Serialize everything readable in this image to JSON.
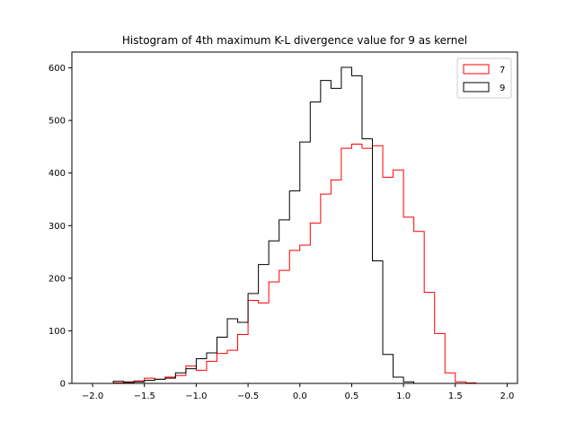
{
  "chart_data": {
    "type": "histogram",
    "title": "Histogram of 4th maximum K-L divergence value for 9 as kernel",
    "xlabel": "",
    "ylabel": "",
    "xlim": [
      -2.2,
      2.1
    ],
    "ylim": [
      0,
      630
    ],
    "x_ticks": [
      -2.0,
      -1.5,
      -1.0,
      -0.5,
      0.0,
      0.5,
      1.0,
      1.5,
      2.0
    ],
    "x_tick_labels": [
      "−2.0",
      "−1.5",
      "−1.0",
      "−0.5",
      "0.0",
      "0.5",
      "1.0",
      "1.5",
      "2.0"
    ],
    "y_ticks": [
      0,
      100,
      200,
      300,
      400,
      500,
      600
    ],
    "y_tick_labels": [
      "0",
      "100",
      "200",
      "300",
      "400",
      "500",
      "600"
    ],
    "bin_edges": [
      -2.0,
      -1.9,
      -1.8,
      -1.7,
      -1.6,
      -1.5,
      -1.4,
      -1.3,
      -1.2,
      -1.1,
      -1.0,
      -0.9,
      -0.8,
      -0.7,
      -0.6,
      -0.5,
      -0.4,
      -0.3,
      -0.2,
      -0.1,
      0.0,
      0.1,
      0.2,
      0.3,
      0.4,
      0.5,
      0.6,
      0.7,
      0.8,
      0.9,
      1.0,
      1.1,
      1.2,
      1.3,
      1.4,
      1.5,
      1.6,
      1.7,
      1.8,
      1.9
    ],
    "series": [
      {
        "name": "7",
        "color": "#ff0000",
        "counts": [
          0,
          0,
          1,
          3,
          5,
          10,
          8,
          12,
          15,
          33,
          25,
          42,
          57,
          63,
          93,
          158,
          153,
          193,
          215,
          253,
          263,
          305,
          360,
          387,
          447,
          455,
          447,
          452,
          392,
          406,
          316,
          289,
          173,
          95,
          20,
          3,
          1,
          0,
          0
        ]
      },
      {
        "name": "9",
        "color": "#000000",
        "counts": [
          0,
          0,
          4,
          2,
          3,
          6,
          8,
          10,
          20,
          28,
          47,
          58,
          88,
          123,
          116,
          171,
          226,
          271,
          311,
          366,
          459,
          535,
          576,
          561,
          601,
          585,
          465,
          233,
          55,
          12,
          3,
          0,
          0,
          0,
          0,
          0,
          0,
          0,
          0
        ]
      }
    ],
    "legend": {
      "position": "upper-right",
      "entries": [
        "7",
        "9"
      ]
    },
    "grid": false
  }
}
